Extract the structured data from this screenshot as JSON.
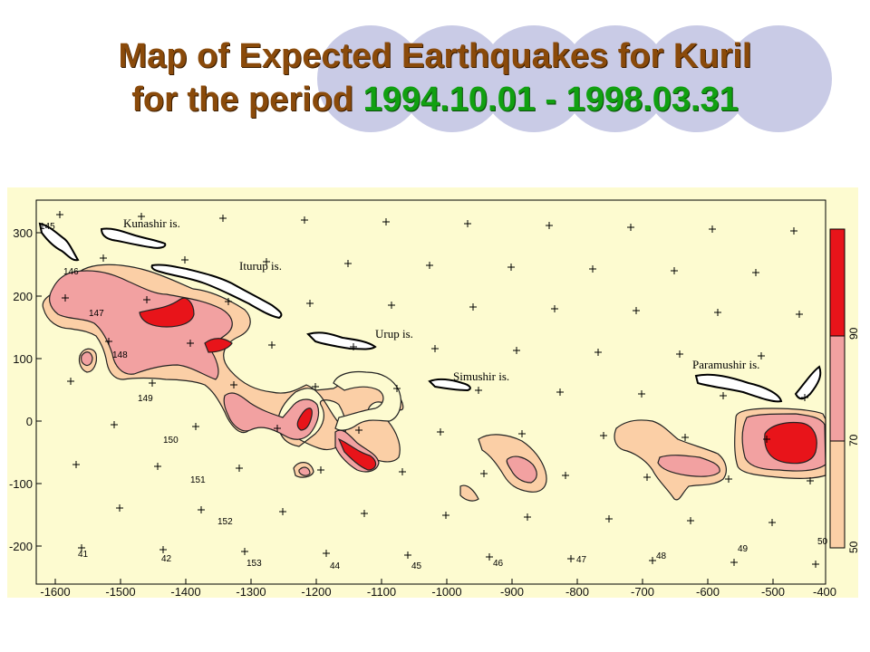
{
  "title": {
    "line1": "Map  of  Expected  Earthquakes  for  Kuril",
    "line2_prefix": "for the period ",
    "line2_dates": "1994.10.01 - 1998.03.31"
  },
  "colors": {
    "background": "#fdfbd0",
    "peach": "#fbcfa6",
    "pink": "#f2a1a1",
    "red": "#e8141a",
    "title_brown": "#8a4a0a",
    "title_green": "#11a011",
    "deco_circle": "#c9cbe6"
  },
  "map": {
    "x_ticks": [
      "-1600",
      "-1500",
      "-1400",
      "-1300",
      "-1200",
      "-1100",
      "-1000",
      "-900",
      "-800",
      "-700",
      "-600",
      "-500",
      "-400"
    ],
    "y_ticks": [
      "300",
      "200",
      "100",
      "0",
      "-100",
      "-200"
    ],
    "islands": [
      "Kunashir is.",
      "Iturup is.",
      "Urup is.",
      "Simushir is.",
      "Paramushir is."
    ],
    "grid_labels": [
      "145",
      "146",
      "147",
      "148",
      "149",
      "150",
      "151",
      "152",
      "153",
      "44",
      "45",
      "46",
      "47",
      "48",
      "49",
      "50",
      "41",
      "42"
    ],
    "legend": [
      "90",
      "70",
      "50"
    ]
  }
}
